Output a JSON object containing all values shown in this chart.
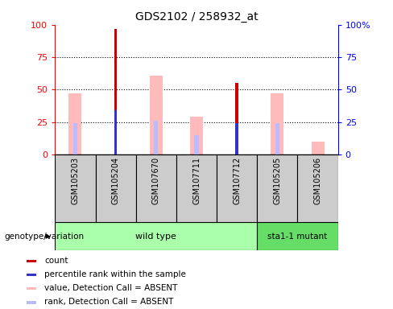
{
  "title": "GDS2102 / 258932_at",
  "samples": [
    "GSM105203",
    "GSM105204",
    "GSM107670",
    "GSM107711",
    "GSM107712",
    "GSM105205",
    "GSM105206"
  ],
  "count": [
    0,
    97,
    0,
    0,
    55,
    0,
    0
  ],
  "percentile_rank": [
    0,
    34,
    0,
    0,
    24,
    0,
    0
  ],
  "absent_value": [
    47,
    0,
    61,
    29,
    0,
    47,
    10
  ],
  "absent_rank": [
    24,
    0,
    26,
    15,
    0,
    24,
    0
  ],
  "has_count": [
    false,
    true,
    false,
    false,
    true,
    false,
    false
  ],
  "has_percentile": [
    false,
    true,
    false,
    false,
    true,
    false,
    false
  ],
  "has_absent_value": [
    true,
    false,
    true,
    true,
    false,
    true,
    true
  ],
  "has_absent_rank": [
    true,
    false,
    true,
    true,
    false,
    true,
    false
  ],
  "wildtype_count": 5,
  "mutant_count": 2,
  "yticks": [
    0,
    25,
    50,
    75,
    100
  ],
  "color_count": "#cc0000",
  "color_percentile": "#3333cc",
  "color_absent_value": "#ffbbbb",
  "color_absent_rank": "#bbbbff",
  "color_group_wildtype": "#aaffaa",
  "color_group_mutant": "#66dd66",
  "color_bg_sample": "#cccccc",
  "legend_items": [
    {
      "label": "count",
      "color": "#cc0000"
    },
    {
      "label": "percentile rank within the sample",
      "color": "#3333cc"
    },
    {
      "label": "value, Detection Call = ABSENT",
      "color": "#ffbbbb"
    },
    {
      "label": "rank, Detection Call = ABSENT",
      "color": "#bbbbff"
    }
  ]
}
